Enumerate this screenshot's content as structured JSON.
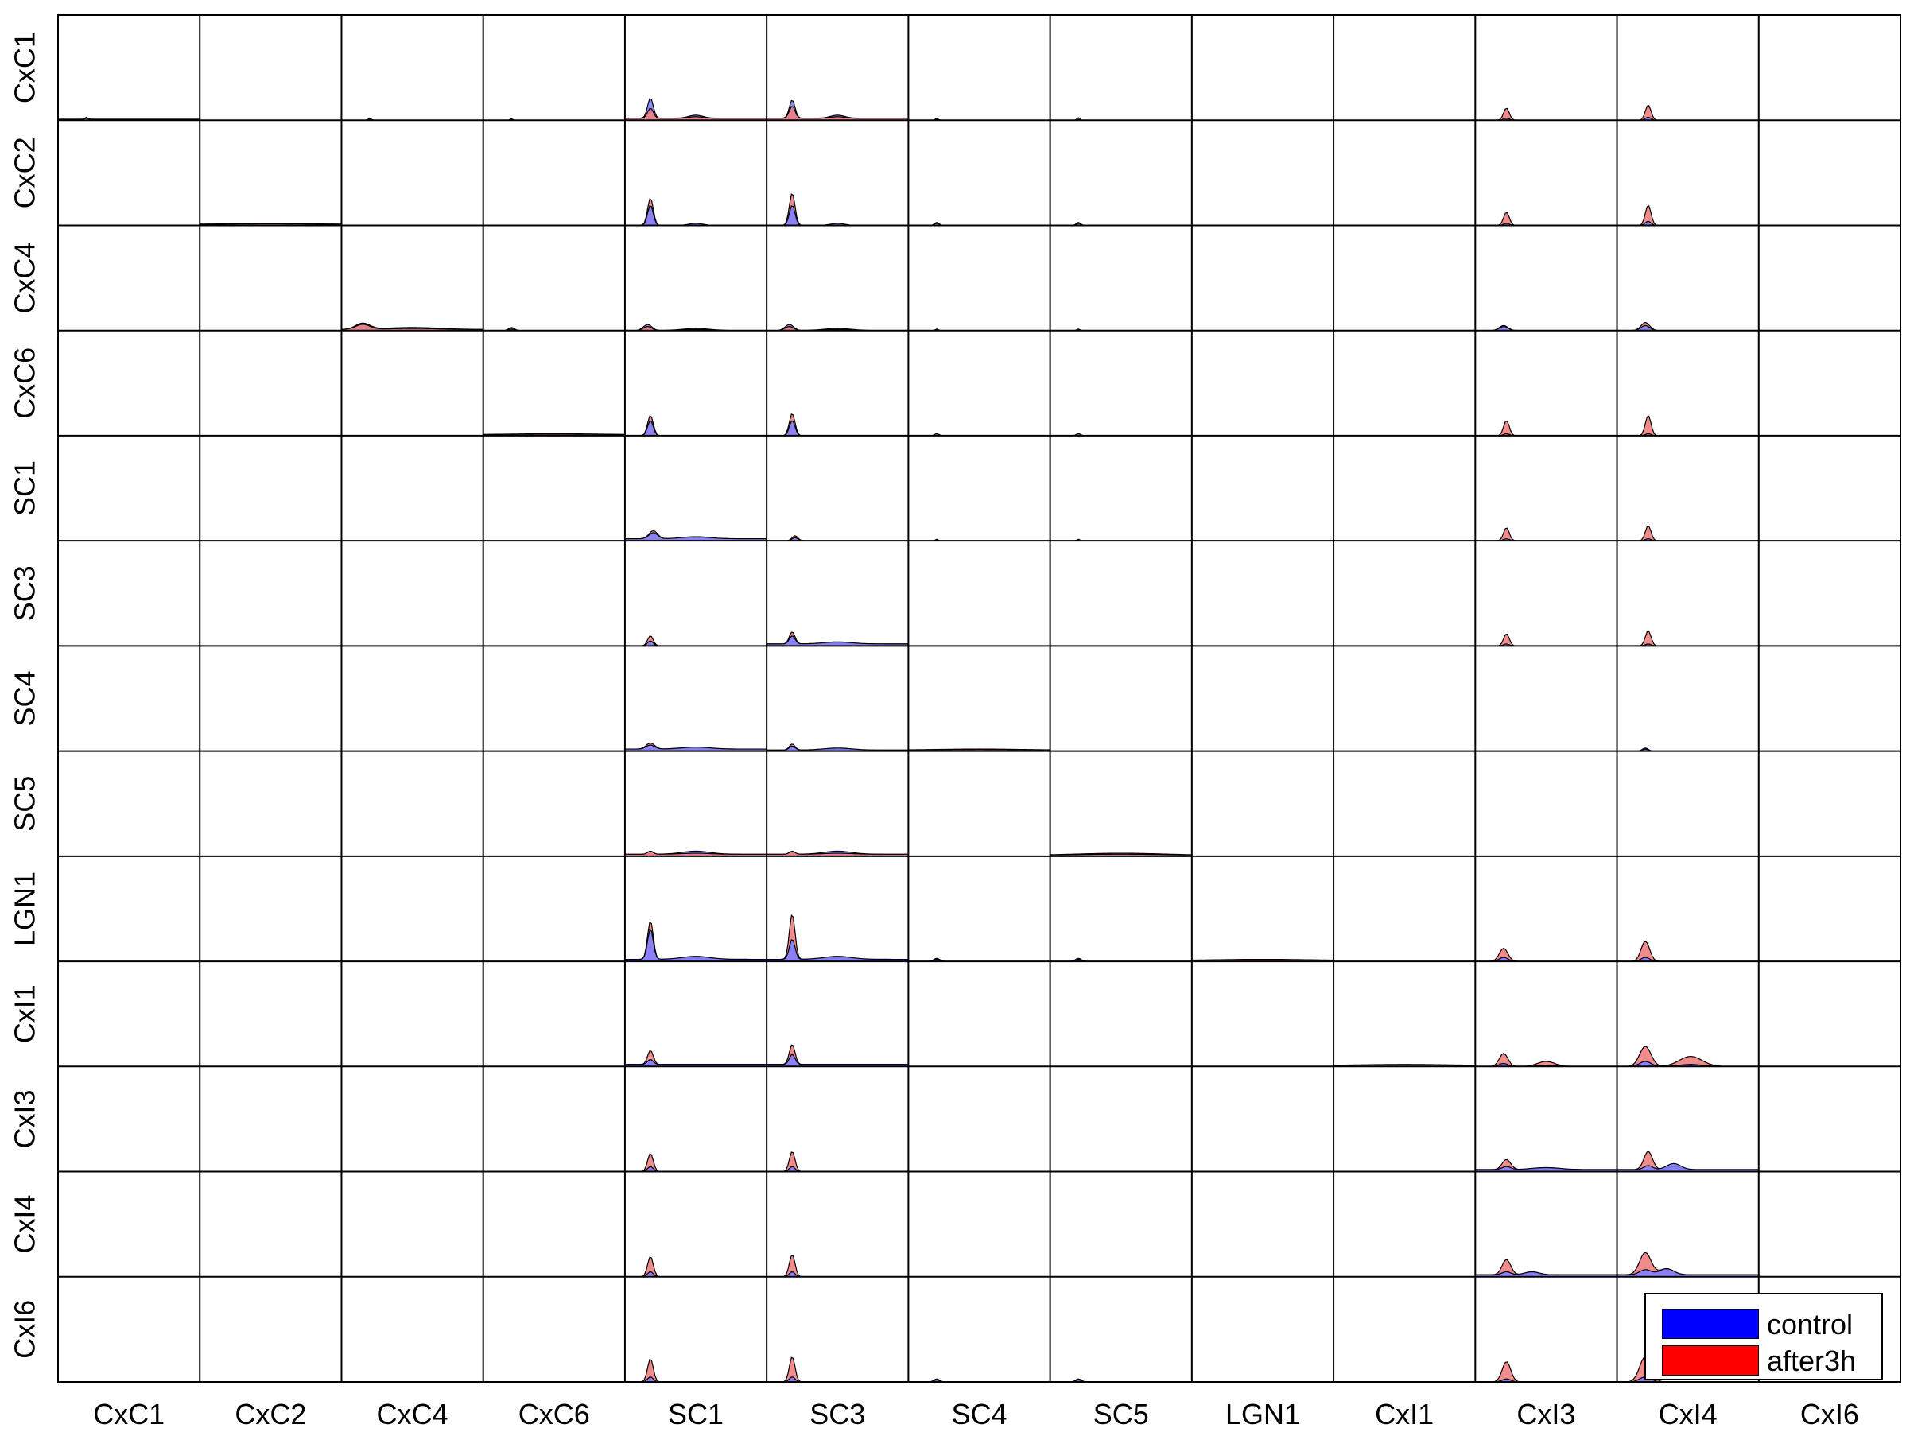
{
  "chart_data": {
    "type": "area",
    "layout": "13x13 grid of small-multiple density plots",
    "row_labels": [
      "CxC1",
      "CxC2",
      "CxC4",
      "CxC6",
      "SC1",
      "SC3",
      "SC4",
      "SC5",
      "LGN1",
      "CxI1",
      "CxI3",
      "CxI4",
      "CxI6"
    ],
    "col_labels": [
      "CxC1",
      "CxC2",
      "CxC4",
      "CxC6",
      "SC1",
      "SC3",
      "SC4",
      "SC5",
      "LGN1",
      "CxI1",
      "CxI3",
      "CxI4",
      "CxI6"
    ],
    "ylim": [
      0,
      1
    ],
    "grid": false,
    "legend_position": "bottom-right",
    "series": [
      {
        "name": "control",
        "color": "#0000ff",
        "fill": "#8080ff"
      },
      {
        "name": "after3h",
        "color": "#ff0000",
        "fill": "#f08080"
      }
    ],
    "cells": [
      {
        "r": 0,
        "c": 0,
        "k": [
          [
            0.2,
            0.02,
            0.01,
            0.01
          ]
        ],
        "b": 0.01
      },
      {
        "r": 0,
        "c": 2,
        "k": [
          [
            0.2,
            0.02,
            0.015,
            0.01
          ]
        ]
      },
      {
        "r": 0,
        "c": 3,
        "k": [
          [
            0.2,
            0.015,
            0.01,
            0.01
          ]
        ]
      },
      {
        "r": 0,
        "c": 4,
        "k": [
          [
            0.18,
            0.2,
            0.1,
            0.02
          ],
          [
            0.5,
            0.03,
            0.015,
            0.05
          ]
        ],
        "b": 0.02
      },
      {
        "r": 0,
        "c": 5,
        "k": [
          [
            0.18,
            0.18,
            0.12,
            0.02
          ],
          [
            0.5,
            0.03,
            0.015,
            0.05
          ]
        ],
        "b": 0.02
      },
      {
        "r": 0,
        "c": 6,
        "k": [
          [
            0.2,
            0.02,
            0.01,
            0.01
          ]
        ]
      },
      {
        "r": 0,
        "c": 7,
        "k": [
          [
            0.2,
            0.025,
            0.01,
            0.01
          ]
        ]
      },
      {
        "r": 0,
        "c": 10,
        "k": [
          [
            0.22,
            0.02,
            0.12,
            0.02
          ]
        ]
      },
      {
        "r": 0,
        "c": 11,
        "k": [
          [
            0.22,
            0.03,
            0.15,
            0.02
          ]
        ]
      },
      {
        "r": 1,
        "c": 1,
        "k": [
          [
            0.5,
            0.01,
            0.005,
            0.3
          ]
        ],
        "b": 0.01
      },
      {
        "r": 1,
        "c": 4,
        "k": [
          [
            0.18,
            0.2,
            0.27,
            0.02
          ],
          [
            0.5,
            0.02,
            0.01,
            0.05
          ]
        ]
      },
      {
        "r": 1,
        "c": 5,
        "k": [
          [
            0.18,
            0.2,
            0.32,
            0.02
          ],
          [
            0.5,
            0.02,
            0.01,
            0.05
          ]
        ]
      },
      {
        "r": 1,
        "c": 6,
        "k": [
          [
            0.2,
            0.03,
            0.02,
            0.015
          ]
        ]
      },
      {
        "r": 1,
        "c": 7,
        "k": [
          [
            0.2,
            0.03,
            0.02,
            0.015
          ]
        ]
      },
      {
        "r": 1,
        "c": 10,
        "k": [
          [
            0.22,
            0.02,
            0.13,
            0.02
          ]
        ]
      },
      {
        "r": 1,
        "c": 11,
        "k": [
          [
            0.22,
            0.04,
            0.2,
            0.02
          ]
        ]
      },
      {
        "r": 2,
        "c": 2,
        "k": [
          [
            0.15,
            0.06,
            0.05,
            0.05
          ],
          [
            0.5,
            0.02,
            0.01,
            0.2
          ]
        ],
        "b": 0.01
      },
      {
        "r": 2,
        "c": 3,
        "k": [
          [
            0.2,
            0.03,
            0.015,
            0.02
          ]
        ]
      },
      {
        "r": 2,
        "c": 4,
        "k": [
          [
            0.16,
            0.06,
            0.04,
            0.03
          ],
          [
            0.5,
            0.02,
            0.01,
            0.1
          ]
        ]
      },
      {
        "r": 2,
        "c": 5,
        "k": [
          [
            0.16,
            0.06,
            0.04,
            0.03
          ],
          [
            0.5,
            0.02,
            0.01,
            0.1
          ]
        ]
      },
      {
        "r": 2,
        "c": 6,
        "k": [
          [
            0.2,
            0.015,
            0.01,
            0.01
          ]
        ]
      },
      {
        "r": 2,
        "c": 7,
        "k": [
          [
            0.2,
            0.015,
            0.01,
            0.01
          ]
        ]
      },
      {
        "r": 2,
        "c": 10,
        "k": [
          [
            0.2,
            0.04,
            0.05,
            0.03
          ]
        ]
      },
      {
        "r": 2,
        "c": 11,
        "k": [
          [
            0.2,
            0.05,
            0.08,
            0.03
          ]
        ]
      },
      {
        "r": 3,
        "c": 3,
        "k": [
          [
            0.5,
            0.01,
            0.005,
            0.3
          ]
        ],
        "b": 0.01
      },
      {
        "r": 3,
        "c": 4,
        "k": [
          [
            0.18,
            0.15,
            0.2,
            0.02
          ]
        ]
      },
      {
        "r": 3,
        "c": 5,
        "k": [
          [
            0.18,
            0.15,
            0.22,
            0.02
          ]
        ]
      },
      {
        "r": 3,
        "c": 6,
        "k": [
          [
            0.2,
            0.02,
            0.02,
            0.015
          ]
        ]
      },
      {
        "r": 3,
        "c": 7,
        "k": [
          [
            0.2,
            0.02,
            0.02,
            0.015
          ]
        ]
      },
      {
        "r": 3,
        "c": 10,
        "k": [
          [
            0.22,
            0.02,
            0.15,
            0.02
          ]
        ]
      },
      {
        "r": 3,
        "c": 11,
        "k": [
          [
            0.22,
            0.02,
            0.2,
            0.02
          ]
        ]
      },
      {
        "r": 4,
        "c": 4,
        "k": [
          [
            0.2,
            0.06,
            0.08,
            0.03
          ],
          [
            0.5,
            0.02,
            0.01,
            0.1
          ]
        ],
        "b": 0.02
      },
      {
        "r": 4,
        "c": 5,
        "k": [
          [
            0.2,
            0.03,
            0.05,
            0.02
          ]
        ]
      },
      {
        "r": 4,
        "c": 6,
        "k": [
          [
            0.2,
            0.015,
            0.01,
            0.01
          ]
        ]
      },
      {
        "r": 4,
        "c": 7,
        "k": [
          [
            0.2,
            0.015,
            0.01,
            0.01
          ]
        ]
      },
      {
        "r": 4,
        "c": 10,
        "k": [
          [
            0.22,
            0.02,
            0.13,
            0.02
          ]
        ]
      },
      {
        "r": 4,
        "c": 11,
        "k": [
          [
            0.22,
            0.02,
            0.15,
            0.02
          ]
        ]
      },
      {
        "r": 5,
        "c": 4,
        "k": [
          [
            0.18,
            0.05,
            0.1,
            0.02
          ]
        ]
      },
      {
        "r": 5,
        "c": 5,
        "k": [
          [
            0.18,
            0.08,
            0.12,
            0.02
          ],
          [
            0.5,
            0.02,
            0.01,
            0.1
          ]
        ],
        "b": 0.02
      },
      {
        "r": 5,
        "c": 10,
        "k": [
          [
            0.22,
            0.02,
            0.12,
            0.02
          ]
        ]
      },
      {
        "r": 5,
        "c": 11,
        "k": [
          [
            0.22,
            0.02,
            0.15,
            0.02
          ]
        ]
      },
      {
        "r": 6,
        "c": 4,
        "k": [
          [
            0.18,
            0.04,
            0.06,
            0.03
          ],
          [
            0.5,
            0.02,
            0.01,
            0.1
          ]
        ],
        "b": 0.02
      },
      {
        "r": 6,
        "c": 5,
        "k": [
          [
            0.18,
            0.04,
            0.06,
            0.02
          ],
          [
            0.5,
            0.02,
            0.01,
            0.1
          ]
        ],
        "b": 0.01
      },
      {
        "r": 6,
        "c": 6,
        "k": [
          [
            0.5,
            0.01,
            0.005,
            0.3
          ]
        ],
        "b": 0.01
      },
      {
        "r": 6,
        "c": 11,
        "k": [
          [
            0.2,
            0.02,
            0.03,
            0.02
          ]
        ]
      },
      {
        "r": 7,
        "c": 4,
        "k": [
          [
            0.18,
            0.03,
            0.03,
            0.02
          ],
          [
            0.5,
            0.03,
            0.01,
            0.1
          ]
        ],
        "b": 0.02
      },
      {
        "r": 7,
        "c": 5,
        "k": [
          [
            0.18,
            0.02,
            0.03,
            0.02
          ],
          [
            0.5,
            0.03,
            0.01,
            0.1
          ]
        ],
        "b": 0.02
      },
      {
        "r": 7,
        "c": 7,
        "k": [
          [
            0.5,
            0.02,
            0.01,
            0.3
          ]
        ],
        "b": 0.01
      },
      {
        "r": 8,
        "c": 4,
        "k": [
          [
            0.18,
            0.3,
            0.38,
            0.02
          ],
          [
            0.5,
            0.03,
            0.015,
            0.1
          ]
        ],
        "b": 0.02
      },
      {
        "r": 8,
        "c": 5,
        "k": [
          [
            0.18,
            0.2,
            0.45,
            0.02
          ],
          [
            0.5,
            0.03,
            0.015,
            0.1
          ]
        ],
        "b": 0.02
      },
      {
        "r": 8,
        "c": 6,
        "k": [
          [
            0.2,
            0.02,
            0.03,
            0.02
          ]
        ]
      },
      {
        "r": 8,
        "c": 7,
        "k": [
          [
            0.2,
            0.02,
            0.03,
            0.02
          ]
        ]
      },
      {
        "r": 8,
        "c": 8,
        "k": [
          [
            0.5,
            0.01,
            0.005,
            0.3
          ]
        ],
        "b": 0.01
      },
      {
        "r": 8,
        "c": 10,
        "k": [
          [
            0.2,
            0.04,
            0.13,
            0.03
          ]
        ]
      },
      {
        "r": 8,
        "c": 11,
        "k": [
          [
            0.2,
            0.04,
            0.2,
            0.03
          ]
        ]
      },
      {
        "r": 9,
        "c": 4,
        "k": [
          [
            0.18,
            0.05,
            0.14,
            0.02
          ]
        ],
        "b": 0.02
      },
      {
        "r": 9,
        "c": 5,
        "k": [
          [
            0.18,
            0.1,
            0.2,
            0.02
          ]
        ],
        "b": 0.02
      },
      {
        "r": 9,
        "c": 9,
        "k": [
          [
            0.5,
            0.01,
            0.005,
            0.3
          ]
        ],
        "b": 0.01
      },
      {
        "r": 9,
        "c": 10,
        "k": [
          [
            0.2,
            0.03,
            0.13,
            0.03
          ],
          [
            0.5,
            0.01,
            0.05,
            0.06
          ]
        ]
      },
      {
        "r": 9,
        "c": 11,
        "k": [
          [
            0.2,
            0.05,
            0.2,
            0.04
          ],
          [
            0.52,
            0.02,
            0.1,
            0.08
          ]
        ]
      },
      {
        "r": 10,
        "c": 4,
        "k": [
          [
            0.18,
            0.05,
            0.18,
            0.02
          ]
        ]
      },
      {
        "r": 10,
        "c": 5,
        "k": [
          [
            0.18,
            0.05,
            0.2,
            0.02
          ]
        ]
      },
      {
        "r": 10,
        "c": 10,
        "k": [
          [
            0.22,
            0.03,
            0.1,
            0.03
          ],
          [
            0.5,
            0.02,
            0.01,
            0.1
          ]
        ],
        "b": 0.02
      },
      {
        "r": 10,
        "c": 11,
        "k": [
          [
            0.22,
            0.04,
            0.18,
            0.03
          ],
          [
            0.4,
            0.06,
            0.03,
            0.05
          ]
        ],
        "b": 0.02
      },
      {
        "r": 11,
        "c": 4,
        "k": [
          [
            0.18,
            0.05,
            0.2,
            0.02
          ]
        ]
      },
      {
        "r": 11,
        "c": 5,
        "k": [
          [
            0.18,
            0.05,
            0.22,
            0.02
          ]
        ]
      },
      {
        "r": 11,
        "c": 10,
        "k": [
          [
            0.22,
            0.03,
            0.15,
            0.03
          ],
          [
            0.4,
            0.03,
            0.02,
            0.05
          ]
        ],
        "b": 0.02
      },
      {
        "r": 11,
        "c": 11,
        "k": [
          [
            0.2,
            0.05,
            0.22,
            0.04
          ],
          [
            0.35,
            0.06,
            0.06,
            0.05
          ]
        ],
        "b": 0.02
      },
      {
        "r": 12,
        "c": 4,
        "k": [
          [
            0.18,
            0.05,
            0.23,
            0.02
          ]
        ]
      },
      {
        "r": 12,
        "c": 5,
        "k": [
          [
            0.18,
            0.05,
            0.25,
            0.02
          ]
        ]
      },
      {
        "r": 12,
        "c": 6,
        "k": [
          [
            0.2,
            0.02,
            0.03,
            0.02
          ]
        ]
      },
      {
        "r": 12,
        "c": 7,
        "k": [
          [
            0.2,
            0.02,
            0.03,
            0.02
          ]
        ]
      },
      {
        "r": 12,
        "c": 10,
        "k": [
          [
            0.22,
            0.03,
            0.2,
            0.03
          ]
        ]
      },
      {
        "r": 12,
        "c": 11,
        "k": [
          [
            0.2,
            0.05,
            0.25,
            0.04
          ]
        ]
      }
    ]
  }
}
